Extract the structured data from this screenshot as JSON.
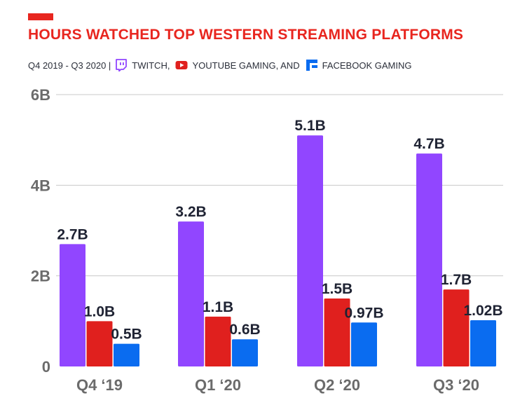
{
  "header": {
    "title": "HOURS WATCHED TOP WESTERN STREAMING PLATFORMS",
    "period": "Q4 2019 - Q3 2020 |",
    "platforms": [
      {
        "label": "TWITCH,",
        "icon": "twitch-icon"
      },
      {
        "label": "YOUTUBE GAMING, AND",
        "icon": "youtube-icon"
      },
      {
        "label": "FACEBOOK GAMING",
        "icon": "facebook-gaming-icon"
      }
    ]
  },
  "colors": {
    "accent": "#e8261f",
    "twitch": "#9146ff",
    "youtube": "#e0201e",
    "facebook": "#0a6cf0",
    "label_text": "#1f2333",
    "axis_text": "#6b6b6b",
    "grid": "#c8c8c8"
  },
  "chart_data": {
    "type": "bar",
    "title": "HOURS WATCHED TOP WESTERN STREAMING PLATFORMS",
    "categories": [
      "Q4 ‘19",
      "Q1 ‘20",
      "Q2 ‘20",
      "Q3 ‘20"
    ],
    "series": [
      {
        "name": "TWITCH",
        "values": [
          2.7,
          3.2,
          5.1,
          4.7
        ],
        "labels": [
          "2.7B",
          "3.2B",
          "5.1B",
          "4.7B"
        ]
      },
      {
        "name": "YOUTUBE GAMING",
        "values": [
          1.0,
          1.1,
          1.5,
          1.7
        ],
        "labels": [
          "1.0B",
          "1.1B",
          "1.5B",
          "1.7B"
        ]
      },
      {
        "name": "FACEBOOK GAMING",
        "values": [
          0.5,
          0.6,
          0.97,
          1.02
        ],
        "labels": [
          "0.5B",
          "0.6B",
          "0.97B",
          "1.02B"
        ]
      }
    ],
    "ylim": [
      0,
      6
    ],
    "yticks": [
      0,
      2,
      4,
      6
    ],
    "ytick_labels": [
      "0",
      "2B",
      "4B",
      "6B"
    ],
    "xlabel": "",
    "ylabel": "",
    "grid": true,
    "legend": "top"
  }
}
